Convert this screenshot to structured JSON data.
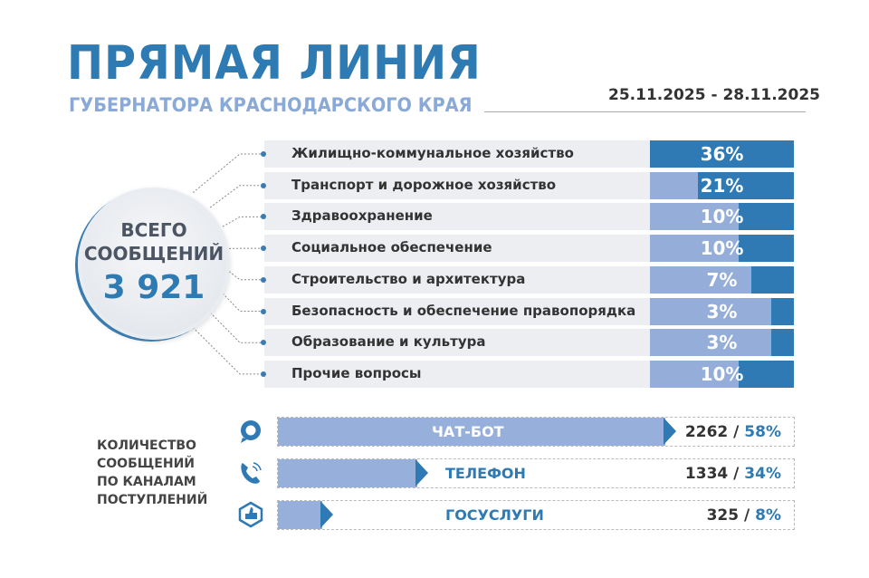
{
  "header": {
    "title": "ПРЯМАЯ ЛИНИЯ",
    "subtitle": "ГУБЕРНАТОРА КРАСНОДАРСКОГО КРАЯ",
    "dates": "25.11.2025 - 28.11.2025"
  },
  "total": {
    "line1": "ВСЕГО",
    "line2": "СООБЩЕНИЙ",
    "value": "3 921"
  },
  "colors": {
    "dark": "#2f7ab5",
    "light": "#94add9",
    "title": "#2e7bb4"
  },
  "chart_data": [
    {
      "type": "bar",
      "categories": [
        "Жилищно-коммунальное хозяйство",
        "Транспорт и дорожное хозяйство",
        "Здравоохранение",
        "Социальное обеспечение",
        "Строительство и архитектура",
        "Безопасность и обеспечение правопорядка",
        "Образование и культура",
        "Прочие вопросы"
      ],
      "values": [
        36,
        21,
        10,
        10,
        7,
        3,
        3,
        10
      ],
      "labels": [
        "36%",
        "21%",
        "10%",
        "10%",
        "7%",
        "3%",
        "3%",
        "10%"
      ]
    },
    {
      "type": "bar",
      "title": "КОЛИЧЕСТВО СООБЩЕНИЙ ПО КАНАЛАМ ПОСТУПЛЕНИЙ",
      "categories": [
        "ЧАТ-БОТ",
        "ТЕЛЕФОН",
        "ГОСУСЛУГИ"
      ],
      "counts": [
        2262,
        1334,
        325
      ],
      "percents": [
        58,
        34,
        8
      ],
      "count_labels": [
        "2262 /",
        "1334 /",
        "325 /"
      ],
      "percent_labels": [
        "58%",
        "34%",
        "8%"
      ],
      "icons": [
        "chat-icon",
        "phone-icon",
        "thumbs-up-icon"
      ]
    }
  ],
  "channels_label": [
    "КОЛИЧЕСТВО",
    "СООБЩЕНИЙ",
    "ПО КАНАЛАМ",
    "ПОСТУПЛЕНИЙ"
  ]
}
